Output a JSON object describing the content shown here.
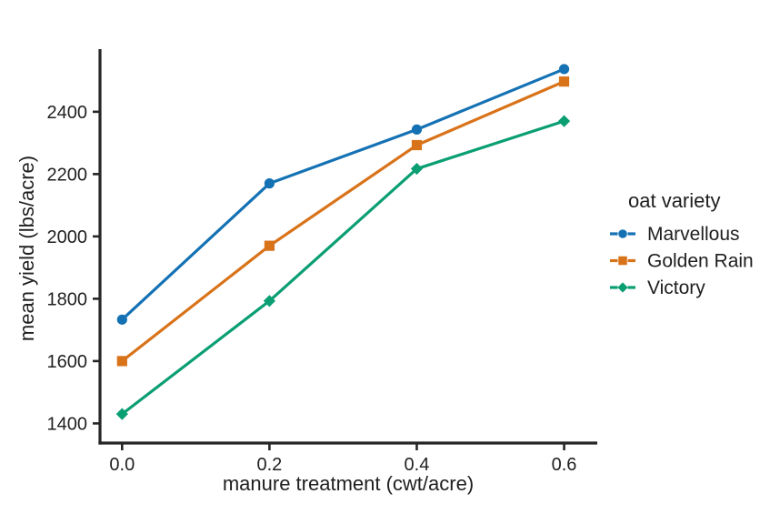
{
  "chart_data": {
    "type": "line",
    "title": "",
    "xlabel": "manure treatment (cwt/acre)",
    "ylabel": "mean yield (lbs/acre)",
    "x": [
      0.0,
      0.2,
      0.4,
      0.6
    ],
    "xtick_labels": [
      "0.0",
      "0.2",
      "0.4",
      "0.6"
    ],
    "yticks": [
      1400,
      1600,
      1800,
      2000,
      2200,
      2400
    ],
    "xlim": [
      -0.03,
      0.645
    ],
    "ylim": [
      1337,
      2601
    ],
    "grid": false,
    "series": [
      {
        "name": "Marvellous",
        "marker": "circle",
        "color": "#1472B4",
        "values": [
          1733,
          2170,
          2343,
          2537
        ]
      },
      {
        "name": "Golden Rain",
        "marker": "square",
        "color": "#D9731A",
        "values": [
          1600,
          1970,
          2293,
          2497
        ]
      },
      {
        "name": "Victory",
        "marker": "diamond",
        "color": "#0A9E73",
        "values": [
          1430,
          1793,
          2217,
          2370
        ]
      }
    ],
    "legend": {
      "title": "oat variety",
      "position": "right"
    },
    "axis_color": "#262626"
  }
}
